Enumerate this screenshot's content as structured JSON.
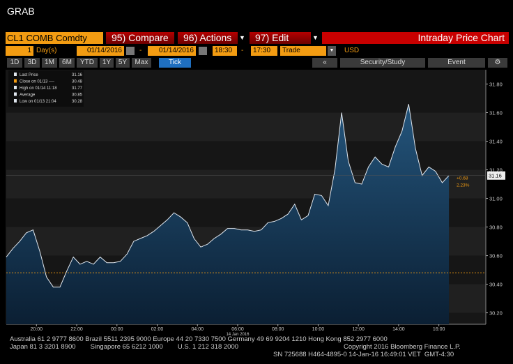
{
  "header": {
    "title": "GRAB"
  },
  "toolbar": {
    "ticker": "CL1 COMB Comdty",
    "compare": "95) Compare",
    "actions": "96) Actions",
    "edit": "97) Edit",
    "page_title": "Intraday Price Chart"
  },
  "params": {
    "period": "1",
    "unit": "Day(s)",
    "start_date": "01/14/2016",
    "sep1": "-",
    "end_date": "01/14/2016",
    "start_time": "18:30",
    "sep2": "-",
    "end_time": "17:30",
    "event": "Trade",
    "currency": "USD"
  },
  "ranges": [
    "1D",
    "3D",
    "1M",
    "6M",
    "YTD",
    "1Y",
    "5Y",
    "Max",
    "Tick"
  ],
  "tools": {
    "back": "«",
    "study": "Security/Study",
    "event": "Event"
  },
  "chart_data": {
    "type": "line",
    "color": "#dfe6ee",
    "x": [
      0,
      20,
      40,
      60,
      80,
      100,
      120,
      140,
      160,
      180,
      200,
      220,
      240,
      260,
      280,
      300,
      320,
      340,
      360,
      380,
      400,
      420,
      440,
      460,
      480,
      500,
      520,
      540,
      560,
      580,
      600,
      620,
      640,
      660,
      680,
      700,
      720,
      740,
      760,
      780,
      800,
      820,
      840,
      860,
      880,
      900,
      920,
      940,
      960,
      980,
      1000,
      1020,
      1040,
      1060,
      1080,
      1100,
      1120,
      1140,
      1160,
      1180,
      1200,
      1220,
      1240,
      1260,
      1280,
      1300,
      1320
    ],
    "values": [
      30.59,
      30.65,
      30.7,
      30.76,
      30.78,
      30.63,
      30.45,
      30.38,
      30.38,
      30.49,
      30.59,
      30.54,
      30.56,
      30.54,
      30.59,
      30.55,
      30.55,
      30.56,
      30.61,
      30.7,
      30.72,
      30.74,
      30.77,
      30.81,
      30.85,
      30.9,
      30.87,
      30.83,
      30.72,
      30.66,
      30.68,
      30.72,
      30.75,
      30.79,
      30.79,
      30.78,
      30.78,
      30.77,
      30.78,
      30.83,
      30.84,
      30.86,
      30.89,
      30.96,
      30.85,
      30.88,
      31.03,
      31.02,
      30.95,
      31.2,
      31.6,
      31.26,
      31.11,
      31.1,
      31.22,
      31.29,
      31.24,
      31.22,
      31.36,
      31.47,
      31.66,
      31.35,
      31.16,
      31.22,
      31.19,
      31.11,
      31.16
    ],
    "xlim": [
      0,
      1430
    ],
    "xticks": [
      {
        "value": 90,
        "label": "20:00"
      },
      {
        "value": 210,
        "label": "22:00"
      },
      {
        "value": 330,
        "label": "00:00"
      },
      {
        "value": 450,
        "label": "02:00"
      },
      {
        "value": 570,
        "label": "04:00"
      },
      {
        "value": 690,
        "label": "06:00"
      },
      {
        "value": 810,
        "label": "08:00"
      },
      {
        "value": 930,
        "label": "10:00"
      },
      {
        "value": 1050,
        "label": "12:00"
      },
      {
        "value": 1170,
        "label": "14:00"
      },
      {
        "value": 1290,
        "label": "16:00"
      }
    ],
    "date_label": "14 Jan 2016",
    "ylim": [
      30.12,
      31.9
    ],
    "yticks": [
      {
        "value": 30.2,
        "label": "30.20"
      },
      {
        "value": 30.4,
        "label": "30.40"
      },
      {
        "value": 30.6,
        "label": "30.60"
      },
      {
        "value": 30.8,
        "label": "30.80"
      },
      {
        "value": 31.0,
        "label": "31.00"
      },
      {
        "value": 31.2,
        "label": "31.20"
      },
      {
        "value": 31.4,
        "label": "31.40"
      },
      {
        "value": 31.6,
        "label": "31.60"
      },
      {
        "value": 31.8,
        "label": "31.80"
      }
    ],
    "legend": [
      {
        "label": "Last Price",
        "value": 31.16
      },
      {
        "label": "Close on 01/13 ----",
        "value": 30.48
      },
      {
        "label": "High on 01/14 11:18",
        "value": 31.77
      },
      {
        "label": "Average",
        "value": 30.85
      },
      {
        "label": "Low on 01/13 21:04",
        "value": 30.28
      }
    ],
    "change": "+0.68",
    "change_pct": "2.23%"
  },
  "footer": {
    "line1": "Australia 61 2 9777 8600 Brazil 5511 2395 9000 Europe 44 20 7330 7500 Germany 49 69 9204 1210 Hong Kong 852 2977 6000",
    "line2": "Japan 81 3 3201 8900        Singapore 65 6212 1000        U.S. 1 212 318 2000",
    "copyright": "Copyright 2016 Bloomberg Finance L.P.",
    "line3": "SN 725688 H464-4895-0 14-Jan-16 16:49:01 VET  GMT-4:30"
  }
}
